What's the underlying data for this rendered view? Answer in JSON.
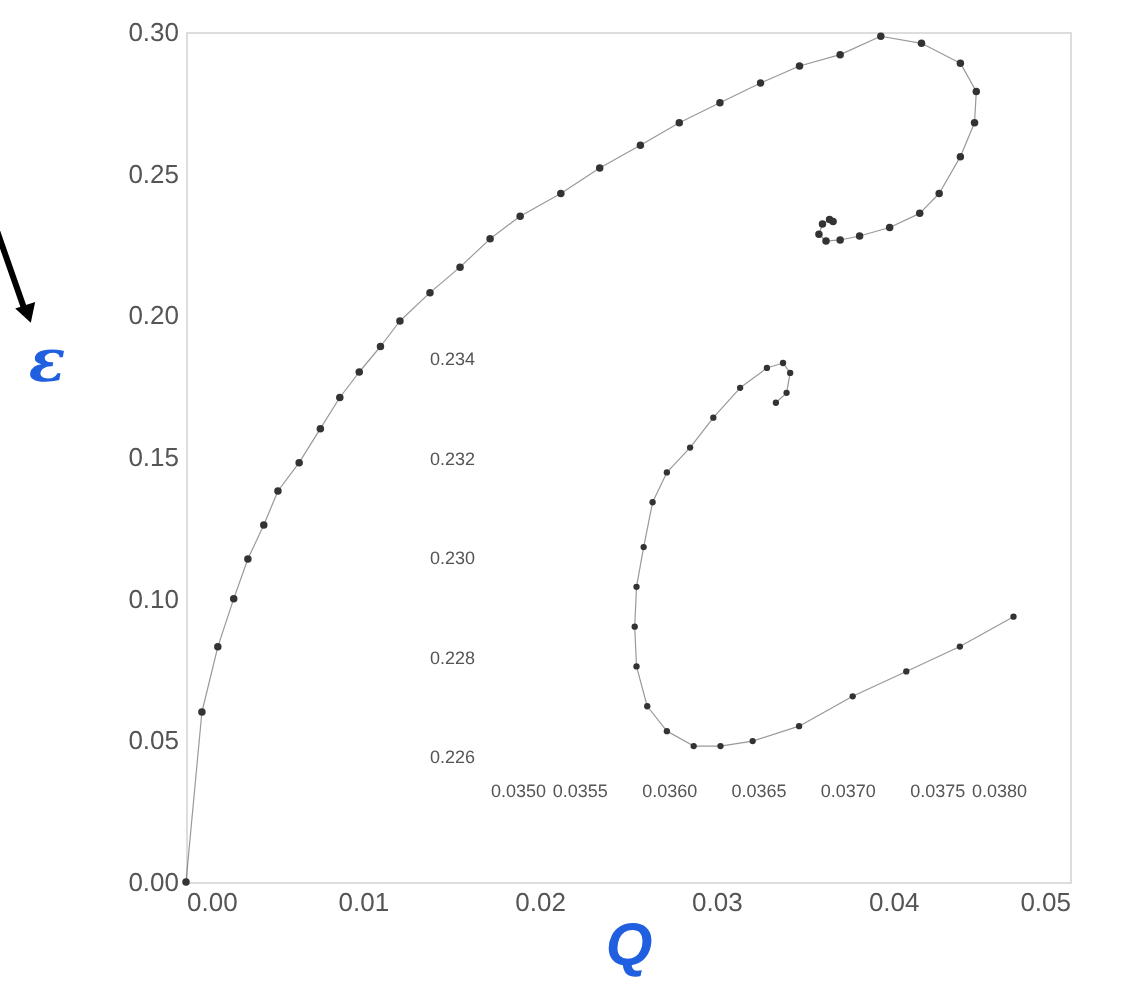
{
  "chart_data": [
    {
      "type": "line",
      "marker": "circle",
      "xlabel": "Q",
      "ylabel": "ε",
      "x": [
        0,
        0.0009,
        0.0018,
        0.0027,
        0.0035,
        0.0044,
        0.0052,
        0.0064,
        0.0076,
        0.0087,
        0.0098,
        0.011,
        0.0121,
        0.0138,
        0.0155,
        0.0172,
        0.0189,
        0.0212,
        0.0234,
        0.0257,
        0.0279,
        0.0302,
        0.0325,
        0.0347,
        0.037,
        0.0393,
        0.0416,
        0.0438,
        0.0447,
        0.0446,
        0.0438,
        0.0426,
        0.0415,
        0.0398,
        0.0381,
        0.037,
        0.0362,
        0.0358,
        0.036,
        0.0364,
        0.0366
      ],
      "series": [
        {
          "color": "#333333",
          "values": [
            0,
            0.06,
            0.083,
            0.1,
            0.114,
            0.126,
            0.138,
            0.148,
            0.16,
            0.171,
            0.18,
            0.189,
            0.198,
            0.208,
            0.217,
            0.227,
            0.235,
            0.243,
            0.252,
            0.26,
            0.268,
            0.275,
            0.282,
            0.288,
            0.292,
            0.2985,
            0.296,
            0.289,
            0.279,
            0.268,
            0.256,
            0.243,
            0.236,
            0.231,
            0.228,
            0.2266,
            0.2262,
            0.2286,
            0.2322,
            0.2338,
            0.2331
          ]
        }
      ],
      "xlim": [
        0,
        0.05
      ],
      "ylim": [
        0,
        0.3
      ],
      "xticks": [
        {
          "value": 0,
          "label": "0.00"
        },
        {
          "value": 0.01,
          "label": "0.01"
        },
        {
          "value": 0.02,
          "label": "0.02"
        },
        {
          "value": 0.03,
          "label": "0.03"
        },
        {
          "value": 0.04,
          "label": "0.04"
        },
        {
          "value": 0.05,
          "label": "0.05"
        }
      ],
      "yticks": [
        {
          "value": 0,
          "label": "0.00"
        },
        {
          "value": 0.05,
          "label": "0.05"
        },
        {
          "value": 0.1,
          "label": "0.10"
        },
        {
          "value": 0.15,
          "label": "0.15"
        },
        {
          "value": 0.2,
          "label": "0.20"
        },
        {
          "value": 0.25,
          "label": "0.25"
        },
        {
          "value": 0.3,
          "label": "0.30"
        }
      ]
    },
    {
      "type": "line",
      "marker": "circle",
      "x": [
        0.03793,
        0.03763,
        0.03733,
        0.03703,
        0.03673,
        0.03647,
        0.03629,
        0.03614,
        0.03599,
        0.03588,
        0.03582,
        0.03581,
        0.03582,
        0.03586,
        0.03591,
        0.03599,
        0.03612,
        0.03625,
        0.0364,
        0.03655,
        0.03664,
        0.03668,
        0.03666,
        0.0366
      ],
      "series": [
        {
          "color": "#333333",
          "values": [
            0.2288,
            0.2282,
            0.2277,
            0.2272,
            0.2266,
            0.2263,
            0.2262,
            0.2262,
            0.2265,
            0.227,
            0.2278,
            0.2286,
            0.2294,
            0.2302,
            0.2311,
            0.2317,
            0.2322,
            0.2328,
            0.2334,
            0.2338,
            0.2339,
            0.2337,
            0.2333,
            0.2331
          ]
        }
      ],
      "xlim": [
        0.035,
        0.038
      ],
      "ylim": [
        0.226,
        0.234
      ],
      "xticks": [
        {
          "value": 0.035,
          "label": "0.0350"
        },
        {
          "value": 0.0355,
          "label": "0.0355"
        },
        {
          "value": 0.036,
          "label": "0.0360"
        },
        {
          "value": 0.0365,
          "label": "0.0365"
        },
        {
          "value": 0.037,
          "label": "0.0370"
        },
        {
          "value": 0.0375,
          "label": "0.0375"
        },
        {
          "value": 0.038,
          "label": "0.0380"
        }
      ],
      "yticks": [
        0.226,
        0.228,
        {
          "value": 0.23,
          "label": "0.230"
        },
        0.232,
        0.234
      ]
    }
  ]
}
